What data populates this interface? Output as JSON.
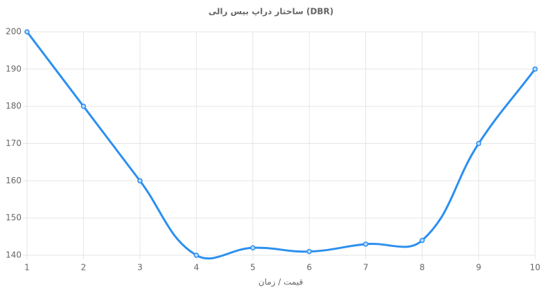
{
  "chart_data": {
    "type": "line",
    "title": "ساختار دراپ بیس رالی (DBR)",
    "x_label": "قیمت / زمان",
    "x": [
      1,
      2,
      3,
      4,
      5,
      6,
      7,
      8,
      9,
      10
    ],
    "series": [
      {
        "color": "#2b8ff0",
        "values": [
          200,
          180,
          160,
          140,
          142,
          141,
          143,
          144,
          170,
          190
        ]
      }
    ],
    "xlim": [
      1,
      10
    ],
    "xticks": [
      1,
      2,
      3,
      4,
      5,
      6,
      7,
      8,
      9,
      10
    ],
    "ylim": [
      140,
      200
    ],
    "yticks": [
      140,
      150,
      160,
      170,
      180,
      190,
      200
    ],
    "grid": true
  }
}
